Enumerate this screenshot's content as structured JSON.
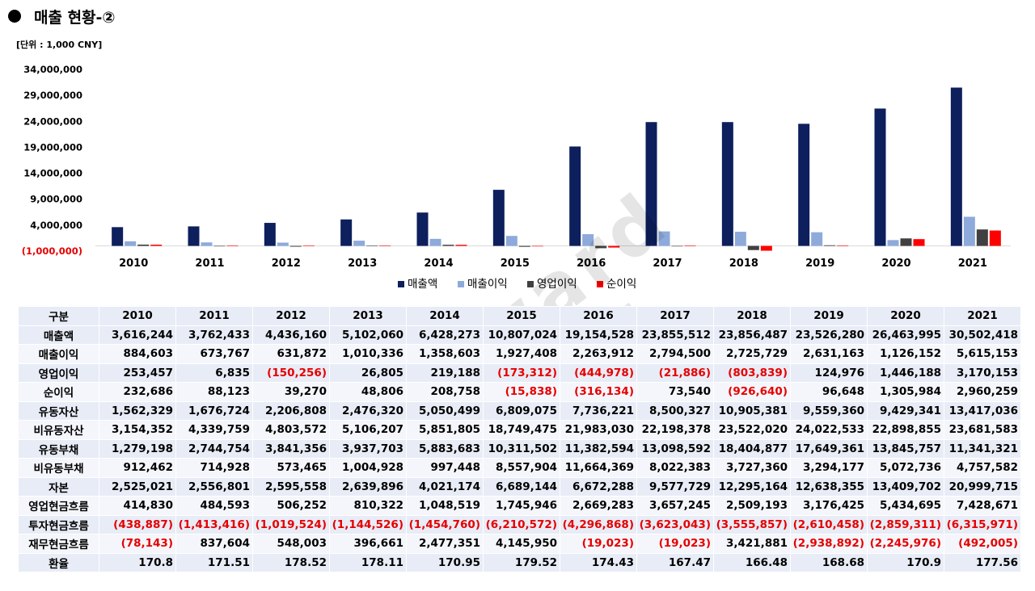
{
  "page": {
    "title": "매출 현황-②",
    "unit": "[단위 : 1,000 CNY]",
    "watermark": "Edward Choi"
  },
  "colors": {
    "revenue": "#0d1f5c",
    "gross_profit": "#8eaadb",
    "operating_profit": "#404040",
    "net_profit": "#ff0000",
    "negative_text": "#e60000"
  },
  "chart_data": {
    "type": "bar",
    "title": "",
    "xlabel": "",
    "ylabel": "",
    "categories": [
      "2010",
      "2011",
      "2012",
      "2013",
      "2014",
      "2015",
      "2016",
      "2017",
      "2018",
      "2019",
      "2020",
      "2021"
    ],
    "series": [
      {
        "name": "매출액",
        "values": [
          3616244,
          3762433,
          4436160,
          5102060,
          6428273,
          10807024,
          19154528,
          23855512,
          23856487,
          23526280,
          26463995,
          30502418
        ]
      },
      {
        "name": "매출이익",
        "values": [
          884603,
          673767,
          631872,
          1010336,
          1358603,
          1927408,
          2263912,
          2794500,
          2725729,
          2631163,
          1126152,
          5615153
        ]
      },
      {
        "name": "영업이익",
        "values": [
          253457,
          6835,
          -150256,
          26805,
          219188,
          -173312,
          -444978,
          -21886,
          -803839,
          124976,
          1446188,
          3170153
        ]
      },
      {
        "name": "순이익",
        "values": [
          232686,
          88123,
          39270,
          48806,
          208758,
          -15838,
          -316134,
          73540,
          -926640,
          96648,
          1305984,
          2960259
        ]
      }
    ],
    "ylim": [
      -1000000,
      34000000
    ],
    "yticks": [
      -1000000,
      4000000,
      9000000,
      14000000,
      19000000,
      24000000,
      29000000,
      34000000
    ],
    "ytick_labels": [
      "(1,000,000)",
      "4,000,000",
      "9,000,000",
      "14,000,000",
      "19,000,000",
      "24,000,000",
      "29,000,000",
      "34,000,000"
    ],
    "legend_position": "bottom-center",
    "grid": false
  },
  "table": {
    "header": [
      "구분",
      "2010",
      "2011",
      "2012",
      "2013",
      "2014",
      "2015",
      "2016",
      "2017",
      "2018",
      "2019",
      "2020",
      "2021"
    ],
    "rows": [
      {
        "label": "매출액",
        "cells": [
          "3,616,244",
          "3,762,433",
          "4,436,160",
          "5,102,060",
          "6,428,273",
          "10,807,024",
          "19,154,528",
          "23,855,512",
          "23,856,487",
          "23,526,280",
          "26,463,995",
          "30,502,418"
        ]
      },
      {
        "label": "매출이익",
        "cells": [
          "884,603",
          "673,767",
          "631,872",
          "1,010,336",
          "1,358,603",
          "1,927,408",
          "2,263,912",
          "2,794,500",
          "2,725,729",
          "2,631,163",
          "1,126,152",
          "5,615,153"
        ]
      },
      {
        "label": "영업이익",
        "cells": [
          "253,457",
          "6,835",
          "(150,256)",
          "26,805",
          "219,188",
          "(173,312)",
          "(444,978)",
          "(21,886)",
          "(803,839)",
          "124,976",
          "1,446,188",
          "3,170,153"
        ]
      },
      {
        "label": "순이익",
        "cells": [
          "232,686",
          "88,123",
          "39,270",
          "48,806",
          "208,758",
          "(15,838)",
          "(316,134)",
          "73,540",
          "(926,640)",
          "96,648",
          "1,305,984",
          "2,960,259"
        ]
      },
      {
        "label": "유동자산",
        "cells": [
          "1,562,329",
          "1,676,724",
          "2,206,808",
          "2,476,320",
          "5,050,499",
          "6,809,075",
          "7,736,221",
          "8,500,327",
          "10,905,381",
          "9,559,360",
          "9,429,341",
          "13,417,036"
        ]
      },
      {
        "label": "비유동자산",
        "cells": [
          "3,154,352",
          "4,339,759",
          "4,803,572",
          "5,106,207",
          "5,851,805",
          "18,749,475",
          "21,983,030",
          "22,198,378",
          "23,522,020",
          "24,022,533",
          "22,898,855",
          "23,681,583"
        ]
      },
      {
        "label": "유동부채",
        "cells": [
          "1,279,198",
          "2,744,754",
          "3,841,356",
          "3,937,703",
          "5,883,683",
          "10,311,502",
          "11,382,594",
          "13,098,592",
          "18,404,877",
          "17,649,361",
          "13,845,757",
          "11,341,321"
        ]
      },
      {
        "label": "비유동부채",
        "cells": [
          "912,462",
          "714,928",
          "573,465",
          "1,004,928",
          "997,448",
          "8,557,904",
          "11,664,369",
          "8,022,383",
          "3,727,360",
          "3,294,177",
          "5,072,736",
          "4,757,582"
        ]
      },
      {
        "label": "자본",
        "cells": [
          "2,525,021",
          "2,556,801",
          "2,595,558",
          "2,639,896",
          "4,021,174",
          "6,689,144",
          "6,672,288",
          "9,577,729",
          "12,295,164",
          "12,638,355",
          "13,409,702",
          "20,999,715"
        ]
      },
      {
        "label": "영업현금흐름",
        "cells": [
          "414,830",
          "484,593",
          "506,252",
          "810,322",
          "1,048,519",
          "1,745,946",
          "2,669,283",
          "3,657,245",
          "2,509,193",
          "3,176,425",
          "5,434,695",
          "7,428,671"
        ]
      },
      {
        "label": "투자현금흐름",
        "cells": [
          "(438,887)",
          "(1,413,416)",
          "(1,019,524)",
          "(1,144,526)",
          "(1,454,760)",
          "(6,210,572)",
          "(4,296,868)",
          "(3,623,043)",
          "(3,555,857)",
          "(2,610,458)",
          "(2,859,311)",
          "(6,315,971)"
        ]
      },
      {
        "label": "재무현금흐름",
        "cells": [
          "(78,143)",
          "837,604",
          "548,003",
          "396,661",
          "2,477,351",
          "4,145,950",
          "(19,023)",
          "(19,023)",
          "3,421,881",
          "(2,938,892)",
          "(2,245,976)",
          "(492,005)"
        ]
      },
      {
        "label": "환율",
        "cells": [
          "170.8",
          "171.51",
          "178.52",
          "178.11",
          "170.95",
          "179.52",
          "174.43",
          "167.47",
          "166.48",
          "168.68",
          "170.9",
          "177.56"
        ]
      }
    ]
  }
}
